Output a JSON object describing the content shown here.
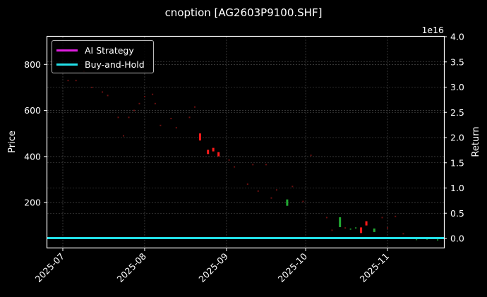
{
  "chart_data": {
    "type": "candlestick+line",
    "title": "cnoption [AG2603P9100.SHF]",
    "xlabel": "",
    "ylabel": "Price",
    "ylabel_right": "Return",
    "right_axis_offset": "1e16",
    "x_ticks": [
      "2025-07",
      "2025-08",
      "2025-09",
      "2025-10",
      "2025-11"
    ],
    "y_ticks": [
      "200",
      "400",
      "600",
      "800"
    ],
    "y_ticks_right": [
      "0.0",
      "0.5",
      "1.0",
      "1.5",
      "2.0",
      "2.5",
      "3.0",
      "3.5",
      "4.0"
    ],
    "ylim": [
      0,
      925
    ],
    "ylim_right": [
      -2000000000000000.0,
      4e+16
    ],
    "grid": true,
    "legend_position": "upper left",
    "legend": [
      {
        "name": "AI Strategy",
        "color": "#e01ee0"
      },
      {
        "name": "Buy-and-Hold",
        "color": "#22e0e8"
      }
    ],
    "series": [
      {
        "name": "AI Strategy",
        "type": "line",
        "values_desc": "flat at ~0 (hidden under Buy-and-Hold)",
        "value": 0
      },
      {
        "name": "Buy-and-Hold",
        "type": "line",
        "values_desc": "flat at ~0",
        "value": 0
      },
      {
        "name": "Price candles",
        "type": "candlestick",
        "points": [
          {
            "date": "2025-07-03",
            "close": 730
          },
          {
            "date": "2025-07-06",
            "close": 730
          },
          {
            "date": "2025-07-09",
            "close": 770
          },
          {
            "date": "2025-07-12",
            "close": 700
          },
          {
            "date": "2025-07-16",
            "close": 680
          },
          {
            "date": "2025-07-18",
            "close": 665
          },
          {
            "date": "2025-07-22",
            "close": 570
          },
          {
            "date": "2025-07-24",
            "close": 490
          },
          {
            "date": "2025-07-26",
            "close": 570
          },
          {
            "date": "2025-07-28",
            "close": 600
          },
          {
            "date": "2025-07-30",
            "close": 630
          },
          {
            "date": "2025-08-01",
            "close": 660
          },
          {
            "date": "2025-08-04",
            "close": 670
          },
          {
            "date": "2025-08-05",
            "close": 630
          },
          {
            "date": "2025-08-07",
            "close": 535
          },
          {
            "date": "2025-08-11",
            "close": 565
          },
          {
            "date": "2025-08-13",
            "close": 525
          },
          {
            "date": "2025-08-18",
            "close": 570
          },
          {
            "date": "2025-08-20",
            "close": 615
          },
          {
            "date": "2025-08-22",
            "close": 485
          },
          {
            "date": "2025-08-25",
            "close": 420
          },
          {
            "date": "2025-08-27",
            "close": 430
          },
          {
            "date": "2025-08-29",
            "close": 410
          },
          {
            "date": "2025-09-02",
            "close": 385
          },
          {
            "date": "2025-09-04",
            "close": 355
          },
          {
            "date": "2025-09-09",
            "close": 280
          },
          {
            "date": "2025-09-11",
            "close": 365
          },
          {
            "date": "2025-09-13",
            "close": 250
          },
          {
            "date": "2025-09-16",
            "close": 365
          },
          {
            "date": "2025-09-18",
            "close": 220
          },
          {
            "date": "2025-09-20",
            "close": 255
          },
          {
            "date": "2025-09-24",
            "close": 200
          },
          {
            "date": "2025-09-26",
            "close": 270
          },
          {
            "date": "2025-09-30",
            "close": 205
          },
          {
            "date": "2025-10-03",
            "close": 405
          },
          {
            "date": "2025-10-09",
            "close": 135
          },
          {
            "date": "2025-10-11",
            "close": 80
          },
          {
            "date": "2025-10-14",
            "close": 115
          },
          {
            "date": "2025-10-16",
            "close": 90
          },
          {
            "date": "2025-10-18",
            "close": 85
          },
          {
            "date": "2025-10-20",
            "close": 90
          },
          {
            "date": "2025-10-22",
            "close": 80
          },
          {
            "date": "2025-10-24",
            "close": 110
          },
          {
            "date": "2025-10-27",
            "close": 80
          },
          {
            "date": "2025-10-30",
            "close": 135
          },
          {
            "date": "2025-11-01",
            "close": 90
          },
          {
            "date": "2025-11-04",
            "close": 140
          },
          {
            "date": "2025-11-07",
            "close": 65
          },
          {
            "date": "2025-11-12",
            "close": 40
          },
          {
            "date": "2025-11-16",
            "close": 42
          },
          {
            "date": "2025-11-20",
            "close": 38
          }
        ]
      }
    ]
  }
}
